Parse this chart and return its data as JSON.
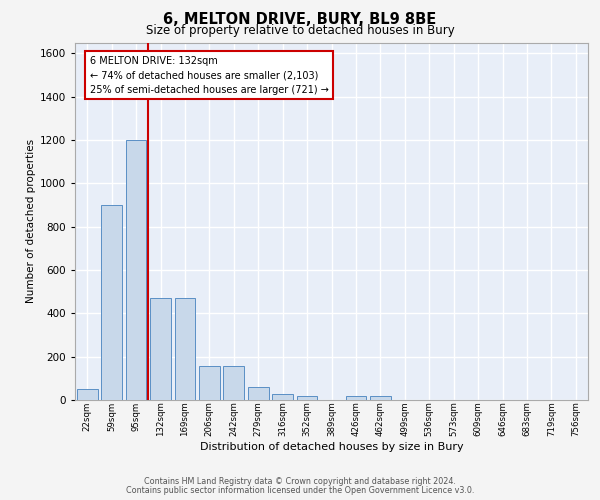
{
  "title": "6, MELTON DRIVE, BURY, BL9 8BE",
  "subtitle": "Size of property relative to detached houses in Bury",
  "xlabel": "Distribution of detached houses by size in Bury",
  "ylabel": "Number of detached properties",
  "categories": [
    "22sqm",
    "59sqm",
    "95sqm",
    "132sqm",
    "169sqm",
    "206sqm",
    "242sqm",
    "279sqm",
    "316sqm",
    "352sqm",
    "389sqm",
    "426sqm",
    "462sqm",
    "499sqm",
    "536sqm",
    "573sqm",
    "609sqm",
    "646sqm",
    "683sqm",
    "719sqm",
    "756sqm"
  ],
  "values": [
    50,
    900,
    1200,
    470,
    470,
    155,
    155,
    60,
    30,
    20,
    0,
    20,
    20,
    0,
    0,
    0,
    0,
    0,
    0,
    0,
    0
  ],
  "bar_color": "#c8d8ea",
  "bar_edge_color": "#5a8fc5",
  "vline_color": "#cc0000",
  "annotation_line1": "6 MELTON DRIVE: 132sqm",
  "annotation_line2": "← 74% of detached houses are smaller (2,103)",
  "annotation_line3": "25% of semi-detached houses are larger (721) →",
  "annotation_box_edge": "#cc0000",
  "ylim": [
    0,
    1650
  ],
  "yticks": [
    0,
    200,
    400,
    600,
    800,
    1000,
    1200,
    1400,
    1600
  ],
  "background_color": "#e8eef8",
  "grid_color": "#d0daf0",
  "footer_line1": "Contains HM Land Registry data © Crown copyright and database right 2024.",
  "footer_line2": "Contains public sector information licensed under the Open Government Licence v3.0.",
  "fig_bg": "#f4f4f4"
}
